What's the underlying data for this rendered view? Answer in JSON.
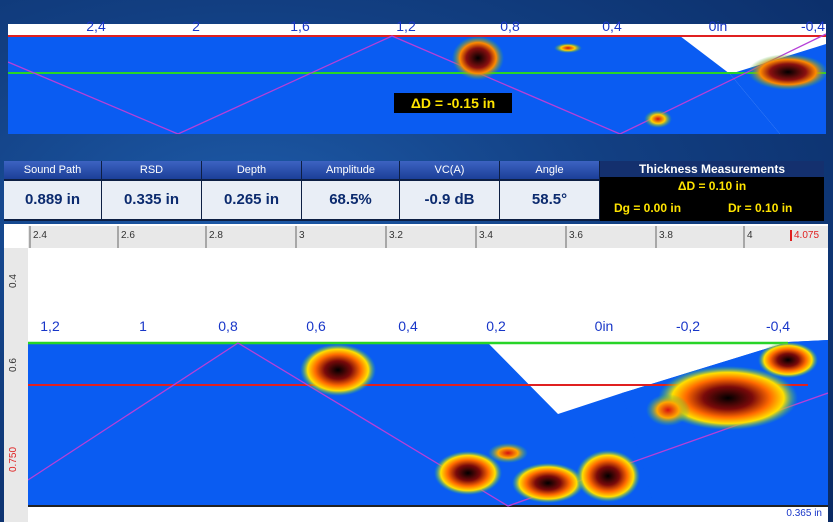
{
  "top_scan": {
    "axis_labels": [
      "2,4",
      "2",
      "1,6",
      "1,2",
      "0,8",
      "0,4",
      "0in",
      "-0,4"
    ],
    "delta_badge": "ΔD = -0.15 in"
  },
  "measurements": {
    "columns": [
      {
        "header": "Sound Path",
        "value": "0.889 in"
      },
      {
        "header": "RSD",
        "value": "0.335 in"
      },
      {
        "header": "Depth",
        "value": "0.265 in"
      },
      {
        "header": "Amplitude",
        "value": "68.5%"
      },
      {
        "header": "VC(A)",
        "value": "-0.9 dB"
      },
      {
        "header": "Angle",
        "value": "58.5°"
      }
    ],
    "thickness": {
      "title": "Thickness Measurements",
      "delta_d": "ΔD = 0.10 in",
      "dg": "Dg = 0.00 in",
      "dr": "Dr = 0.10 in"
    }
  },
  "bottom_view": {
    "ruler_labels": [
      "2.4",
      "2.6",
      "2.8",
      "3",
      "3.2",
      "3.4",
      "3.6",
      "3.8",
      "4"
    ],
    "ruler_marker": "4.075",
    "vertical_labels": [
      "0.4",
      "0.6",
      "0.750"
    ],
    "axis_labels": [
      "1,2",
      "1",
      "0,8",
      "0,6",
      "0,4",
      "0,2",
      "0in",
      "-0,2",
      "-0,4"
    ],
    "thickness_note": "0.365 in"
  },
  "colors": {
    "scan_blue": "#0a5cf2",
    "front_wall": "#e02020",
    "gate": "#28d428",
    "beam_path": "#b640d8",
    "badge_text": "#ffe400"
  }
}
